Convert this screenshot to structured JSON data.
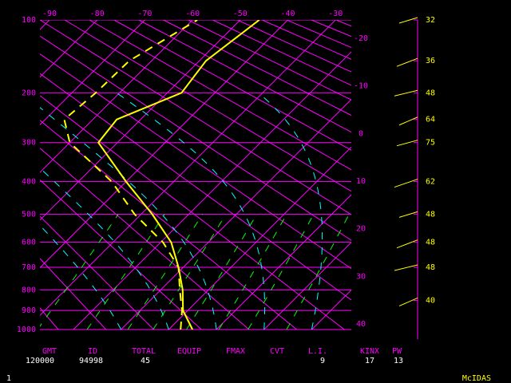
{
  "chart_data": {
    "type": "skewt",
    "pressure_ticks": [
      100,
      200,
      300,
      400,
      500,
      600,
      700,
      800,
      900,
      1000
    ],
    "temp_ticks_top": [
      -90,
      -80,
      -70,
      -60,
      -50,
      -40,
      -30
    ],
    "temp_ticks_right": [
      -20,
      -10,
      0,
      10,
      20,
      30,
      40
    ],
    "pressure": [
      1000,
      900,
      800,
      700,
      600,
      500,
      400,
      300,
      250,
      200,
      150,
      100
    ],
    "series": [
      {
        "name": "temperature",
        "color": "#ffff00",
        "dash": false,
        "values": [
          5,
          -1,
          -5.4,
          -11,
          -17.8,
          -27.7,
          -40,
          -54,
          -55,
          -47,
          -48.6,
          -46
        ]
      },
      {
        "name": "dewpoint",
        "color": "#ffff00",
        "dash": true,
        "values": [
          2.5,
          -1.2,
          -6,
          -11,
          -19.5,
          -31.4,
          -43,
          -60,
          -66,
          -65,
          -64.7,
          -59
        ]
      }
    ],
    "wind_pressure": [
      100,
      150,
      200,
      250,
      300,
      400,
      500,
      600,
      700,
      850
    ],
    "wind_speed": [
      32,
      36,
      48,
      64,
      75,
      62,
      48,
      48,
      48,
      40
    ],
    "footer": [
      {
        "label": "GMT",
        "value": "120000"
      },
      {
        "label": "ID",
        "value": "94998"
      },
      {
        "label": "TOTAL",
        "value": "45"
      },
      {
        "label": "EQUIP"
      },
      {
        "label": "FMAX"
      },
      {
        "label": "CVT"
      },
      {
        "label": "L.I.",
        "value": "9"
      },
      {
        "label": "KINX",
        "value": "17"
      },
      {
        "label": "PW",
        "value": "13"
      }
    ],
    "frame_number": "1",
    "brand": "McIDAS"
  }
}
